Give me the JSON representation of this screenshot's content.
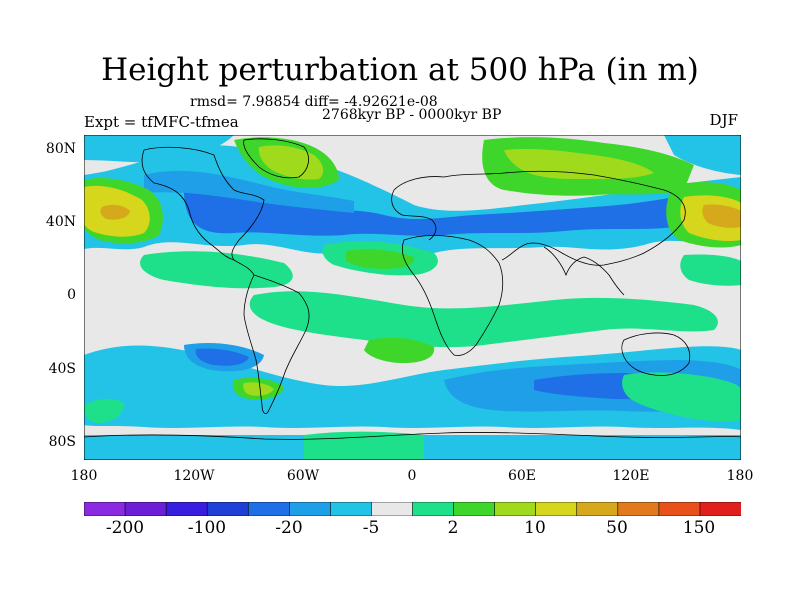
{
  "title": "Height perturbation at 500 hPa (in m)",
  "stats": "rmsd= 7.98854 diff= -4.92621e-08",
  "period": "2768kyr BP - 0000kyr BP",
  "experiment": "Expt = tfMFC-tfmea",
  "season": "DJF",
  "y_tick_labels": [
    "80N",
    "40N",
    "0",
    "40S",
    "80S"
  ],
  "x_tick_labels": [
    "180",
    "120W",
    "60W",
    "0",
    "60E",
    "120E",
    "180"
  ],
  "colorbar": {
    "labels": [
      "-200",
      "-100",
      "-20",
      "-5",
      "2",
      "10",
      "50",
      "150"
    ],
    "colors": [
      "#8a2be2",
      "#6b1fd6",
      "#3a1ee0",
      "#1f3fd6",
      "#1f6fe6",
      "#1f9fe8",
      "#22c3e6",
      "#e8e8e8",
      "#1fe08a",
      "#3fd62b",
      "#9fdb1c",
      "#d6d61c",
      "#d6a81c",
      "#e07a1c",
      "#e8501c",
      "#e0201c"
    ]
  },
  "colors": {
    "ocean_neutral": "#e8e8e8",
    "coastline": "#000000"
  }
}
